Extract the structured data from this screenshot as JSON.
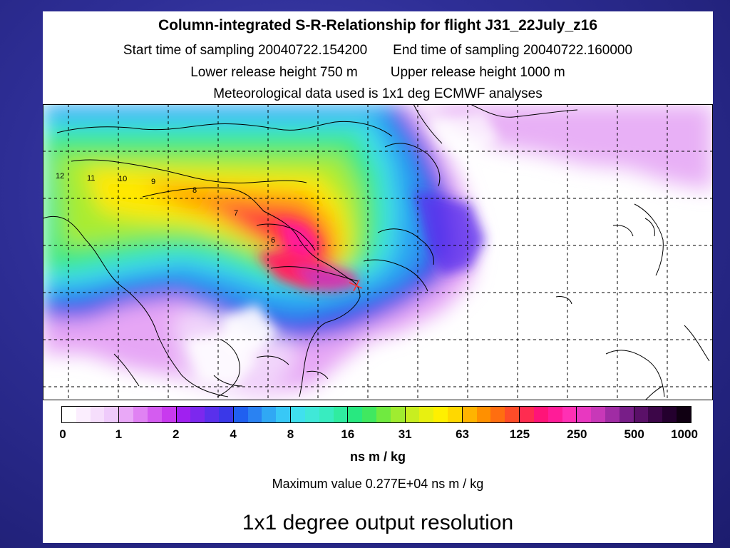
{
  "header": {
    "title": "Column-integrated S-R-Relationship for flight J31_22July_z16",
    "start_time": "Start time of sampling 20040722.154200",
    "end_time": "End time of sampling 20040722.160000",
    "lower_release": "Lower release height  750   m",
    "upper_release": "Upper release height 1000   m",
    "met_data": "Meteorological data used is 1x1 deg ECMWF analyses"
  },
  "map": {
    "contour_labels": [
      "12",
      "11",
      "10",
      "9",
      "8",
      "7",
      "6"
    ]
  },
  "colorbar": {
    "ticks": [
      "0",
      "1",
      "2",
      "4",
      "8",
      "16",
      "31",
      "63",
      "125",
      "250",
      "500",
      "1000"
    ],
    "unit": "ns m / kg",
    "segments": [
      [
        "#ffffff",
        "#fbeefe",
        "#f6defc",
        "#efcbfb"
      ],
      [
        "#e9a8f7",
        "#e082f3",
        "#d45cf0",
        "#c83aee"
      ],
      [
        "#a020f0",
        "#7c28ee",
        "#5a30ec",
        "#3a38e8"
      ],
      [
        "#2060f0",
        "#2a82f2",
        "#30a8f4",
        "#38c8f6"
      ],
      [
        "#40e0ee",
        "#40e8d8",
        "#38ecc0",
        "#30eca0"
      ],
      [
        "#28e880",
        "#40e860",
        "#70ea40",
        "#a0ec30"
      ],
      [
        "#c8ee20",
        "#e8f010",
        "#fff000",
        "#ffd800"
      ],
      [
        "#ffb400",
        "#ff9000",
        "#ff6e10",
        "#ff4c28"
      ],
      [
        "#ff2c50",
        "#ff1478",
        "#ff1c98",
        "#ff30b4"
      ],
      [
        "#e838c0",
        "#c838b8",
        "#a02ca4",
        "#781e88"
      ],
      [
        "#5a1068",
        "#3c0648",
        "#24002e",
        "#100012"
      ]
    ]
  },
  "max_value": "Maximum value  0.277E+04 ns m / kg",
  "caption": "1x1 degree output resolution"
}
